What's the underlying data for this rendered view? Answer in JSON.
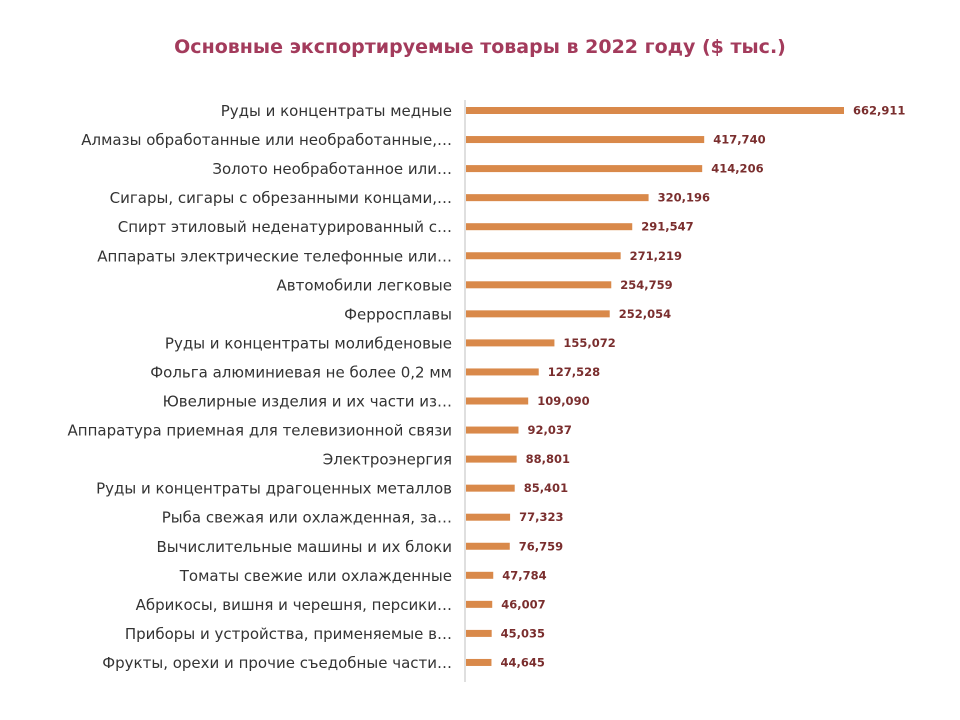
{
  "chart_data": {
    "type": "bar",
    "orientation": "horizontal",
    "title": "Основные экспортируемые товары в 2022 году ($ тыс.)",
    "categories": [
      "Руды и концентраты медные",
      "Алмазы обработанные или необработанные,…",
      "Золото необработанное или…",
      "Сигары, сигары с обрезанными концами,…",
      "Спирт этиловый неденатурированный с…",
      "Аппараты электрические телефонные или…",
      "Автомобили легковые",
      "Ферросплавы",
      "Руды и концентраты молибденовые",
      "Фольга алюминиевая не более 0,2 мм",
      "Ювелирные изделия и их части из…",
      "Аппаратура приемная для телевизионной связи",
      "Электроэнергия",
      "Руды и концентраты драгоценных металлов",
      "Рыба свежая или охлажденная, за…",
      "Вычислительные машины и их блоки",
      "Томаты свежие или охлажденные",
      "Абрикосы, вишня и черешня, персики…",
      "Приборы и устройства, применяемые в…",
      "Фрукты, орехи и прочие съедобные части…"
    ],
    "values": [
      662911,
      417740,
      414206,
      320196,
      291547,
      271219,
      254759,
      252054,
      155072,
      127528,
      109090,
      92037,
      88801,
      85401,
      77323,
      76759,
      47784,
      46007,
      45035,
      44645
    ],
    "value_labels": [
      "662,911",
      "417,740",
      "414,206",
      "320,196",
      "291,547",
      "271,219",
      "254,759",
      "252,054",
      "155,072",
      "127,528",
      "109,090",
      "92,037",
      "88,801",
      "85,401",
      "77,323",
      "76,759",
      "47,784",
      "46,007",
      "45,035",
      "44,645"
    ],
    "bar_color": "#d9894a",
    "title_color": "#a33b5c",
    "value_label_color": "#7a2e2e",
    "grid": false,
    "legend": "none",
    "xlim": [
      0,
      662911
    ]
  }
}
